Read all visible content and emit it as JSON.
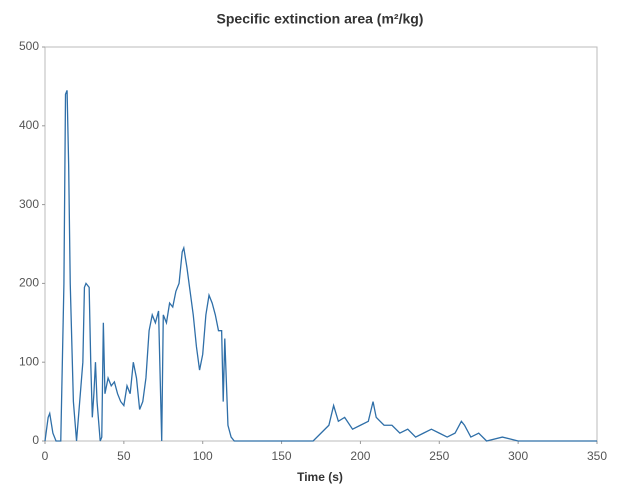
{
  "chart_data": {
    "type": "line",
    "title": "Specific extinction area (m²/kg)",
    "x_label": "Time (s)",
    "x": [
      0,
      2,
      3,
      5,
      7,
      10,
      12,
      13,
      14,
      15,
      16,
      18,
      20,
      22,
      24,
      25,
      26,
      28,
      29,
      30,
      31,
      32,
      33,
      35,
      36,
      37,
      38,
      40,
      42,
      44,
      46,
      48,
      50,
      52,
      54,
      56,
      58,
      60,
      62,
      64,
      66,
      68,
      70,
      72,
      74,
      75,
      77,
      79,
      81,
      83,
      85,
      87,
      88,
      90,
      92,
      94,
      96,
      98,
      100,
      102,
      104,
      106,
      108,
      110,
      112,
      113,
      114,
      116,
      118,
      120,
      130,
      150,
      170,
      175,
      180,
      183,
      186,
      190,
      195,
      200,
      205,
      208,
      210,
      215,
      220,
      225,
      230,
      235,
      240,
      245,
      250,
      255,
      260,
      264,
      266,
      270,
      275,
      280,
      290,
      300,
      350
    ],
    "series": [
      {
        "name": "Specific extinction area",
        "color": "#2f6fa8",
        "values": [
          0,
          30,
          35,
          10,
          0,
          0,
          200,
          440,
          445,
          350,
          200,
          50,
          0,
          50,
          100,
          195,
          200,
          195,
          100,
          30,
          60,
          100,
          50,
          0,
          5,
          150,
          60,
          80,
          70,
          75,
          60,
          50,
          45,
          70,
          60,
          100,
          80,
          40,
          50,
          80,
          140,
          160,
          150,
          165,
          0,
          160,
          150,
          175,
          170,
          190,
          200,
          240,
          245,
          220,
          190,
          160,
          120,
          90,
          110,
          160,
          185,
          175,
          160,
          140,
          140,
          50,
          130,
          20,
          5,
          0,
          0,
          0,
          0,
          10,
          20,
          45,
          25,
          30,
          15,
          20,
          25,
          50,
          30,
          20,
          20,
          10,
          15,
          5,
          10,
          15,
          10,
          5,
          10,
          25,
          20,
          5,
          10,
          0,
          5,
          0,
          0
        ]
      }
    ],
    "xlim": [
      0,
      350
    ],
    "xticks": [
      0,
      50,
      100,
      150,
      200,
      250,
      300,
      350
    ],
    "ylim": [
      0,
      500
    ],
    "yticks": [
      0,
      100,
      200,
      300,
      400,
      500
    ]
  }
}
